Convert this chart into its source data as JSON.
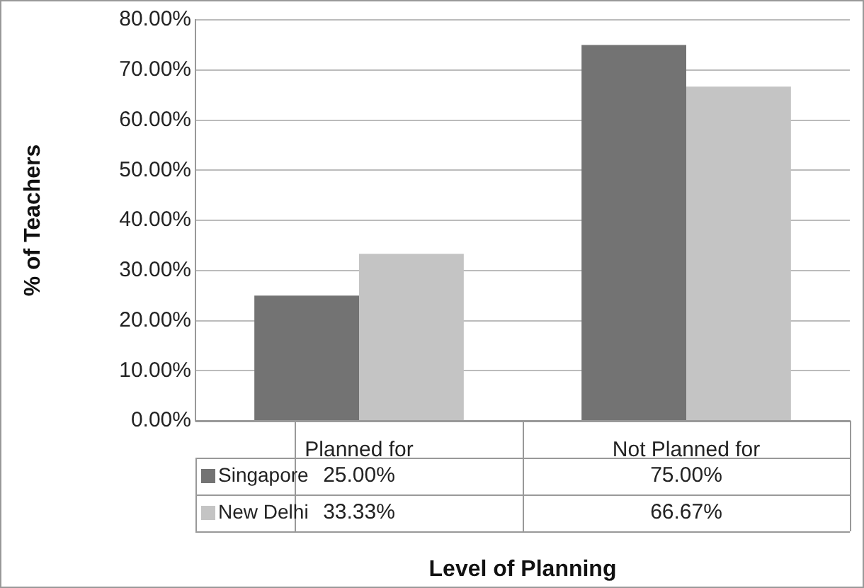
{
  "chart_data": {
    "type": "bar",
    "xlabel": "Level of Planning",
    "ylabel": "% of Teachers",
    "categories": [
      "Planned for",
      "Not Planned for"
    ],
    "series": [
      {
        "name": "Singapore",
        "color": "#737373",
        "values": [
          25,
          75
        ],
        "value_labels": [
          "25.00%",
          "75.00%"
        ]
      },
      {
        "name": "New Delhi",
        "color": "#c4c4c4",
        "values": [
          33.33,
          66.67
        ],
        "value_labels": [
          "33.33%",
          "66.67%"
        ]
      }
    ],
    "ylim": [
      0,
      80
    ],
    "yticks": [
      {
        "value": 0,
        "label": "0.00%"
      },
      {
        "value": 10,
        "label": "10.00%"
      },
      {
        "value": 20,
        "label": "20.00%"
      },
      {
        "value": 30,
        "label": "30.00%"
      },
      {
        "value": 40,
        "label": "40.00%"
      },
      {
        "value": 50,
        "label": "50.00%"
      },
      {
        "value": 60,
        "label": "60.00%"
      },
      {
        "value": 70,
        "label": "70.00%"
      },
      {
        "value": 80,
        "label": "80.00%"
      }
    ],
    "grid": "y",
    "legend": "bottom left"
  }
}
